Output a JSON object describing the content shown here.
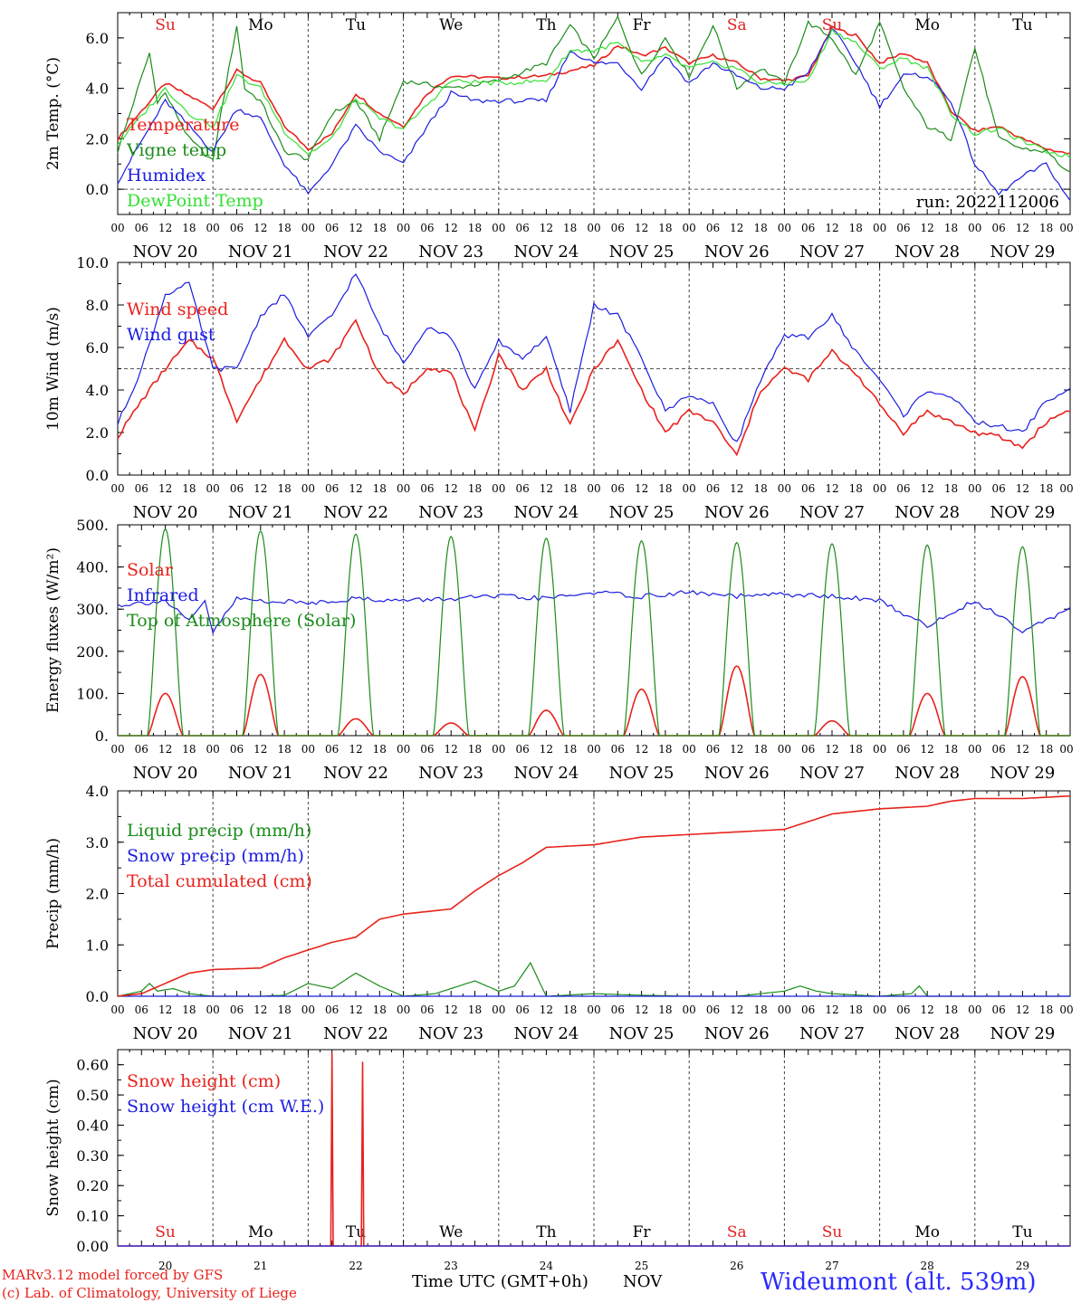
{
  "run_label": "run: 2022112006",
  "days": [
    "Su",
    "Mo",
    "Tu",
    "We",
    "Th",
    "Fr",
    "Sa",
    "Su",
    "Mo",
    "Tu"
  ],
  "day_colors": [
    "#e02020",
    "#000000",
    "#000000",
    "#000000",
    "#000000",
    "#000000",
    "#e02020",
    "#e02020",
    "#000000",
    "#000000"
  ],
  "date_labels": [
    "NOV 20",
    "NOV 21",
    "NOV 22",
    "NOV 23",
    "NOV 24",
    "NOV 25",
    "NOV 26",
    "NOV 27",
    "NOV 28",
    "NOV 29"
  ],
  "day_numbers": [
    "20",
    "21",
    "22",
    "23",
    "24",
    "25",
    "26",
    "27",
    "28",
    "29"
  ],
  "hour_ticks": [
    "00",
    "06",
    "12",
    "18"
  ],
  "hour_tick_end": "00",
  "colors": {
    "red": "#e8221c",
    "green": "#1a8c1a",
    "blue": "#1c1ce0",
    "lightgreen": "#33e033",
    "wideumont": "#2a2aff"
  },
  "footer": {
    "model": "MARv3.12 model forced by GFS",
    "copyright": "(c) Lab. of Climatology, University of Liege",
    "xlabel": "Time UTC (GMT+0h)",
    "month": "NOV",
    "station": "Wideumont (alt. 539m)"
  },
  "chart_data": [
    {
      "type": "line",
      "ylabel": "2m Temp. (°C)",
      "ylim": [
        -1.0,
        7.0
      ],
      "yticks": [
        "0.0",
        "2.0",
        "4.0",
        "6.0"
      ],
      "ytick_values": [
        0,
        2,
        4,
        6
      ],
      "dashed_y": 0,
      "show_day_names": true,
      "series": [
        {
          "name": "Temperature",
          "color": "red",
          "x": [
            0,
            12,
            24,
            30,
            36,
            42,
            48,
            54,
            60,
            66,
            72,
            78,
            84,
            96,
            108,
            120,
            126,
            132,
            138,
            144,
            150,
            156,
            162,
            168,
            174,
            180,
            186,
            192,
            198,
            204,
            210,
            216,
            222,
            228,
            234,
            240
          ],
          "values": [
            2.0,
            4.2,
            3.2,
            4.7,
            4.2,
            2.5,
            1.6,
            2.2,
            3.8,
            3.0,
            2.5,
            3.8,
            4.5,
            4.4,
            4.5,
            4.9,
            5.7,
            5.3,
            5.6,
            5.0,
            5.3,
            5.0,
            4.4,
            4.3,
            4.5,
            6.4,
            6.1,
            5.0,
            5.4,
            5.0,
            3.1,
            2.3,
            2.5,
            2.0,
            1.6,
            1.4
          ]
        },
        {
          "name": "Vigne temp",
          "color": "green",
          "x": [
            0,
            8,
            10,
            12,
            18,
            24,
            26,
            30,
            32,
            36,
            42,
            48,
            54,
            60,
            66,
            72,
            84,
            96,
            108,
            114,
            120,
            126,
            132,
            138,
            144,
            150,
            156,
            162,
            168,
            174,
            180,
            186,
            192,
            198,
            204,
            210,
            216,
            222,
            228,
            234,
            240
          ],
          "values": [
            1.5,
            5.4,
            3.5,
            3.8,
            2.0,
            1.1,
            3.0,
            6.5,
            4.0,
            3.5,
            1.5,
            1.2,
            3.0,
            3.5,
            2.0,
            4.3,
            4.0,
            4.3,
            5.0,
            6.5,
            5.2,
            6.8,
            4.5,
            6.0,
            4.5,
            6.5,
            4.0,
            4.8,
            4.2,
            6.6,
            6.0,
            4.5,
            6.6,
            4.0,
            2.5,
            2.0,
            5.6,
            2.0,
            1.6,
            1.5,
            0.6
          ]
        },
        {
          "name": "Humidex",
          "color": "blue",
          "x": [
            0,
            12,
            18,
            24,
            30,
            36,
            42,
            48,
            54,
            60,
            66,
            72,
            78,
            84,
            90,
            96,
            108,
            114,
            120,
            126,
            132,
            138,
            144,
            150,
            156,
            162,
            168,
            174,
            180,
            186,
            192,
            198,
            204,
            210,
            216,
            222,
            228,
            234,
            240
          ],
          "values": [
            0.3,
            3.5,
            2.5,
            1.5,
            3.2,
            2.8,
            1.0,
            -0.2,
            1.0,
            2.5,
            1.5,
            1.0,
            2.5,
            3.8,
            3.5,
            3.5,
            3.5,
            5.5,
            5.0,
            5.0,
            4.0,
            5.3,
            4.2,
            5.0,
            4.5,
            4.0,
            4.0,
            4.6,
            6.4,
            5.0,
            3.3,
            4.5,
            4.5,
            3.5,
            1.0,
            -0.2,
            0.5,
            1.0,
            -0.5
          ]
        },
        {
          "name": "DewPoint Temp",
          "color": "lightgreen",
          "x": [
            0,
            12,
            18,
            24,
            30,
            36,
            42,
            48,
            54,
            60,
            66,
            72,
            84,
            96,
            108,
            114,
            120,
            126,
            132,
            138,
            144,
            150,
            156,
            162,
            168,
            174,
            180,
            186,
            192,
            198,
            204,
            210,
            216,
            222,
            228,
            234,
            240
          ],
          "values": [
            1.8,
            4.0,
            3.0,
            2.5,
            4.5,
            4.0,
            2.3,
            1.4,
            2.0,
            3.6,
            2.8,
            2.4,
            4.3,
            4.2,
            4.3,
            5.5,
            5.5,
            5.8,
            5.0,
            5.3,
            4.8,
            5.0,
            4.8,
            4.2,
            4.2,
            4.3,
            6.3,
            5.8,
            4.8,
            5.2,
            4.8,
            3.0,
            2.2,
            2.4,
            1.9,
            1.5,
            1.3
          ]
        }
      ]
    },
    {
      "type": "line",
      "ylabel": "10m Wind (m/s)",
      "ylim": [
        0.0,
        10.0
      ],
      "yticks": [
        "0.0",
        "2.0",
        "4.0",
        "6.0",
        "8.0",
        "10.0"
      ],
      "ytick_values": [
        0,
        2,
        4,
        6,
        8,
        10
      ],
      "dashed_y": 5,
      "series": [
        {
          "name": "Wind speed",
          "color": "red",
          "x": [
            0,
            6,
            12,
            18,
            24,
            30,
            36,
            42,
            48,
            54,
            60,
            66,
            72,
            78,
            84,
            90,
            96,
            102,
            108,
            114,
            120,
            126,
            132,
            138,
            144,
            150,
            156,
            162,
            168,
            174,
            180,
            186,
            192,
            198,
            204,
            210,
            216,
            222,
            228,
            234,
            240
          ],
          "values": [
            1.8,
            3.5,
            5.0,
            6.3,
            5.5,
            2.6,
            4.5,
            6.4,
            5.0,
            5.5,
            7.3,
            4.7,
            3.8,
            5.1,
            4.8,
            2.0,
            5.7,
            4.0,
            5.0,
            2.3,
            5.0,
            6.3,
            4.0,
            2.0,
            3.0,
            2.5,
            0.9,
            4.0,
            5.0,
            4.5,
            5.8,
            4.8,
            3.3,
            2.0,
            3.0,
            2.5,
            2.0,
            1.8,
            1.3,
            2.5,
            3.1
          ]
        },
        {
          "name": "Wind gust",
          "color": "blue",
          "x": [
            0,
            6,
            12,
            18,
            24,
            30,
            36,
            42,
            48,
            54,
            60,
            66,
            72,
            78,
            84,
            90,
            96,
            102,
            108,
            114,
            120,
            126,
            132,
            138,
            144,
            150,
            156,
            162,
            168,
            174,
            180,
            186,
            192,
            198,
            204,
            210,
            216,
            222,
            228,
            234,
            240
          ],
          "values": [
            2.4,
            5.0,
            8.5,
            9.0,
            5.0,
            5.0,
            7.5,
            8.5,
            6.5,
            7.5,
            9.5,
            7.0,
            5.3,
            7.0,
            6.5,
            4.0,
            6.3,
            5.5,
            6.5,
            3.0,
            8.0,
            7.5,
            5.5,
            3.0,
            3.8,
            3.3,
            1.5,
            4.5,
            6.5,
            6.5,
            7.5,
            5.8,
            4.5,
            2.8,
            4.0,
            3.7,
            2.5,
            2.3,
            2.0,
            3.5,
            4.0
          ]
        }
      ]
    },
    {
      "type": "line",
      "ylabel": "Energy fluxes (W/m²)",
      "ylim": [
        0,
        500
      ],
      "yticks": [
        "0.",
        "100.",
        "200.",
        "300.",
        "400.",
        "500."
      ],
      "ytick_values": [
        0,
        100,
        200,
        300,
        400,
        500
      ],
      "daylight": {
        "start": 7.5,
        "noon": 12.0,
        "end": 16.5
      },
      "series": [
        {
          "name": "Solar",
          "color": "red",
          "daily_peak": [
            100,
            145,
            40,
            30,
            60,
            110,
            165,
            35,
            100,
            140
          ]
        },
        {
          "name": "Infrared",
          "color": "blue",
          "x": [
            0,
            12,
            18,
            22,
            24,
            30,
            36,
            48,
            60,
            72,
            84,
            96,
            108,
            120,
            132,
            144,
            156,
            168,
            180,
            192,
            204,
            216,
            228,
            240
          ],
          "values": [
            310,
            320,
            270,
            320,
            245,
            325,
            320,
            315,
            325,
            320,
            325,
            330,
            325,
            340,
            330,
            340,
            330,
            335,
            330,
            320,
            260,
            320,
            250,
            300
          ]
        },
        {
          "name": "Top of Atmosphere (Solar)",
          "color": "green",
          "daily_peak": [
            490,
            485,
            478,
            472,
            468,
            462,
            458,
            455,
            452,
            448
          ]
        }
      ]
    },
    {
      "type": "line",
      "ylabel": "Precip (mm/h)",
      "ylim": [
        0.0,
        4.0
      ],
      "yticks": [
        "0.0",
        "1.0",
        "2.0",
        "3.0",
        "4.0"
      ],
      "ytick_values": [
        0,
        1,
        2,
        3,
        4
      ],
      "series": [
        {
          "name": "Liquid precip (mm/h)",
          "color": "green",
          "x": [
            0,
            6,
            8,
            10,
            14,
            18,
            24,
            30,
            36,
            42,
            48,
            54,
            60,
            66,
            72,
            80,
            84,
            90,
            96,
            100,
            104,
            108,
            120,
            132,
            144,
            156,
            168,
            172,
            176,
            180,
            192,
            200,
            202,
            204,
            240
          ],
          "values": [
            0,
            0.1,
            0.25,
            0.1,
            0.15,
            0.05,
            0,
            0,
            0,
            0.02,
            0.25,
            0.15,
            0.45,
            0.2,
            0,
            0.05,
            0.15,
            0.3,
            0.1,
            0.2,
            0.65,
            0,
            0.05,
            0.02,
            0,
            0,
            0.1,
            0.2,
            0.1,
            0.05,
            0,
            0.05,
            0.2,
            0,
            0
          ]
        },
        {
          "name": "Snow precip (mm/h)",
          "color": "blue",
          "x": [
            0,
            240
          ],
          "values": [
            0,
            0
          ]
        },
        {
          "name": "Total cumulated (cm)",
          "color": "red",
          "x": [
            0,
            6,
            12,
            18,
            24,
            36,
            42,
            48,
            54,
            60,
            66,
            72,
            84,
            90,
            96,
            102,
            108,
            120,
            132,
            144,
            156,
            168,
            180,
            192,
            204,
            210,
            216,
            228,
            240
          ],
          "values": [
            0,
            0.05,
            0.25,
            0.45,
            0.52,
            0.55,
            0.75,
            0.9,
            1.05,
            1.15,
            1.5,
            1.6,
            1.7,
            2.05,
            2.35,
            2.6,
            2.9,
            2.95,
            3.1,
            3.15,
            3.2,
            3.25,
            3.55,
            3.65,
            3.7,
            3.8,
            3.85,
            3.85,
            3.9
          ]
        }
      ]
    },
    {
      "type": "line",
      "ylabel": "Snow height (cm)",
      "ylim": [
        0.0,
        0.65
      ],
      "yticks": [
        "0.00",
        "0.10",
        "0.20",
        "0.30",
        "0.40",
        "0.50",
        "0.60"
      ],
      "ytick_values": [
        0,
        0.1,
        0.2,
        0.3,
        0.4,
        0.5,
        0.6
      ],
      "series": [
        {
          "name": "Snow height (cm)",
          "color": "red",
          "x": [
            0,
            53.7,
            54,
            54.3,
            61.4,
            61.7,
            62,
            240
          ],
          "values": [
            0,
            0,
            0.64,
            0,
            0,
            0.61,
            0,
            0
          ]
        },
        {
          "name": "Snow height (cm W.E.)",
          "color": "blue",
          "x": [
            0,
            240
          ],
          "values": [
            0,
            0
          ]
        }
      ]
    }
  ]
}
